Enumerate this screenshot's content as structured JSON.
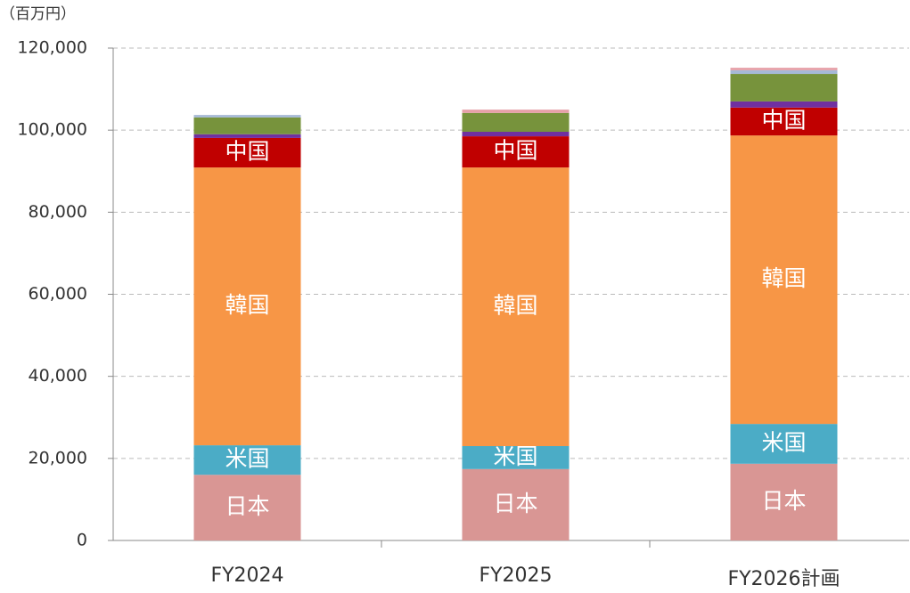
{
  "chart_data": {
    "type": "stacked_bar",
    "unit_label": "（百万円）",
    "categories": [
      "FY2024",
      "FY2025",
      "FY2026計画"
    ],
    "series": [
      {
        "name": "日本",
        "color": "#d99694",
        "values": [
          16000,
          17400,
          18700
        ]
      },
      {
        "name": "米国",
        "color": "#4bacc6",
        "values": [
          7200,
          5600,
          9700
        ]
      },
      {
        "name": "韓国",
        "color": "#f79646",
        "values": [
          67700,
          67900,
          70300
        ]
      },
      {
        "name": "中国",
        "color": "#c00000",
        "values": [
          7200,
          7600,
          6800
        ]
      },
      {
        "color": "#7030a0",
        "values": [
          900,
          1100,
          1500
        ]
      },
      {
        "color": "#77933c",
        "values": [
          4100,
          4600,
          6700
        ]
      },
      {
        "color": "#a6b9d6",
        "values": [
          600,
          0,
          900
        ]
      },
      {
        "color": "#e6a0a8",
        "values": [
          0,
          800,
          600
        ]
      }
    ],
    "ylim": [
      0,
      120000
    ],
    "yticks": [
      0,
      {
        "value": 20000,
        "label": "20,000"
      },
      {
        "value": 40000,
        "label": "40,000"
      },
      {
        "value": 60000,
        "label": "60,000"
      },
      {
        "value": 80000,
        "label": "80,000"
      },
      {
        "value": 100000,
        "label": "100,000"
      },
      {
        "value": 120000,
        "label": "120,000"
      }
    ],
    "grid": true
  }
}
